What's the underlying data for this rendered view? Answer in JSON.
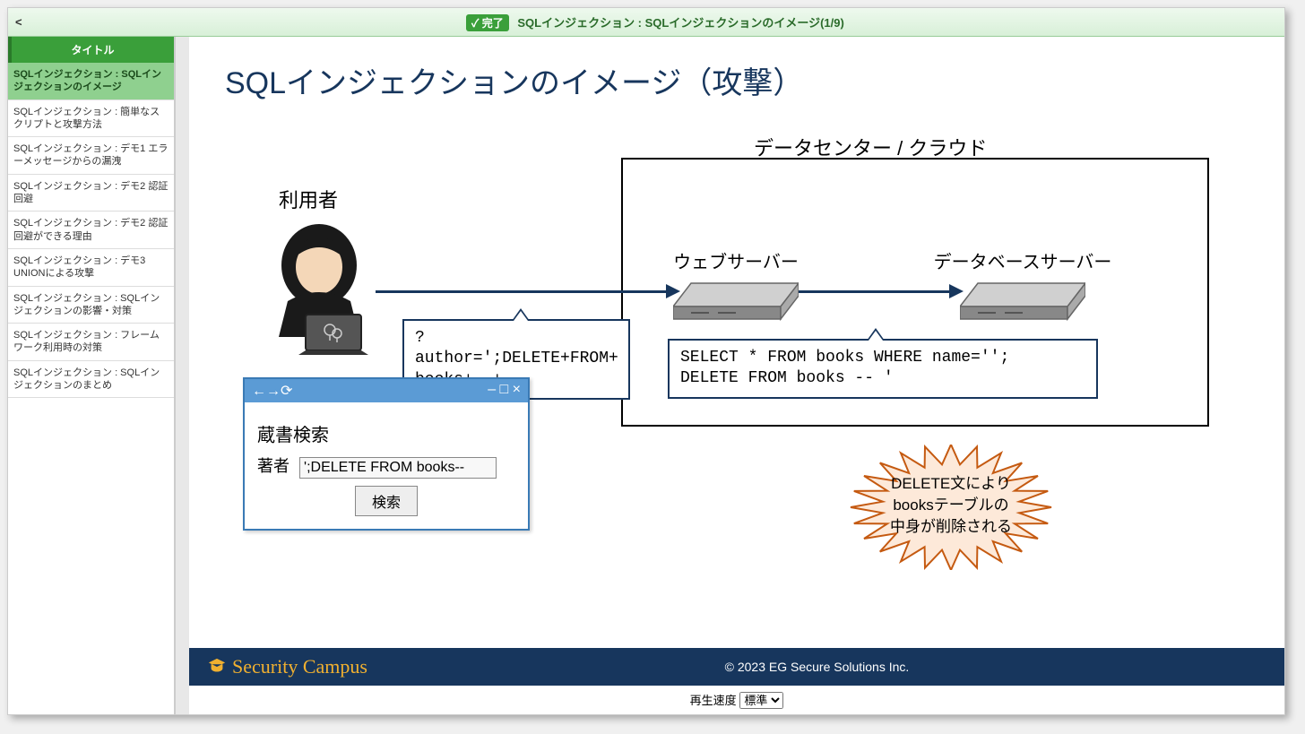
{
  "topbar": {
    "back": "<",
    "status_label": "完了",
    "title": "SQLインジェクション : SQLインジェクションのイメージ(1/9)"
  },
  "sidebar": {
    "header": "タイトル",
    "items": [
      "SQLインジェクション : SQLインジェクションのイメージ",
      "SQLインジェクション : 簡単なスクリプトと攻撃方法",
      "SQLインジェクション : デモ1 エラーメッセージからの漏洩",
      "SQLインジェクション : デモ2 認証回避",
      "SQLインジェクション : デモ2 認証回避ができる理由",
      "SQLインジェクション : デモ3 UNIONによる攻撃",
      "SQLインジェクション : SQLインジェクションの影響・対策",
      "SQLインジェクション : フレームワーク利用時の対策",
      "SQLインジェクション : SQLインジェクションのまとめ"
    ],
    "active_index": 0
  },
  "slide": {
    "title": "SQLインジェクションのイメージ（攻撃）",
    "user_label": "利用者",
    "dc_label": "データセンター / クラウド",
    "web_server_label": "ウェブサーバー",
    "db_server_label": "データベースサーバー",
    "request_text_l1": "?author=';DELETE+FROM+",
    "request_text_l2": "books+--+",
    "sql_text_l1": "SELECT * FROM books WHERE name='';",
    "sql_text_l2": "DELETE FROM books -- '",
    "browser": {
      "nav_icons": "←→⟳",
      "win_icons": "– □ ×",
      "heading": "蔵書検索",
      "field_label": "著者",
      "field_value": "';DELETE FROM books--",
      "button_label": "検索"
    },
    "starburst": {
      "l1": "DELETE文により",
      "l2": "booksテーブルの",
      "l3": "中身が削除される",
      "fill": "#fde9d9",
      "stroke": "#c55a11"
    },
    "arrow_color": "#17365d"
  },
  "footer": {
    "brand": "Security Campus",
    "copyright": "© 2023 EG Secure Solutions Inc."
  },
  "player": {
    "speed_label": "再生速度",
    "speed_value": "標準"
  }
}
